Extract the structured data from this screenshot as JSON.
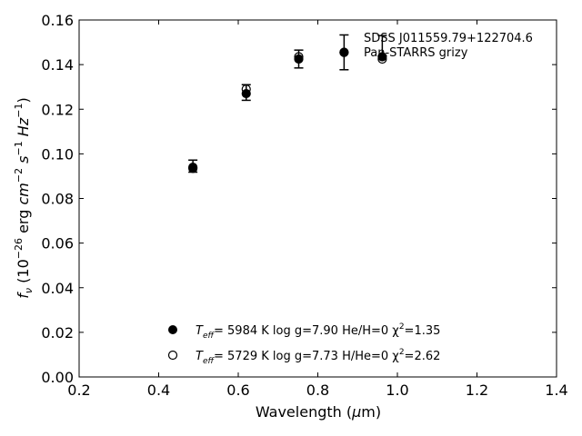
{
  "chart_data": {
    "type": "scatter",
    "annotation_lines": [
      "SDSS J011559.79+122704.6",
      "Pan-STARRS grizy"
    ],
    "xlabel": "Wavelength (μm)",
    "ylabel": "fν (10⁻²⁶ erg cm⁻² s⁻¹ Hz⁻¹)",
    "xlim": [
      0.2,
      1.4
    ],
    "ylim": [
      0.0,
      0.16
    ],
    "xticks": [
      "0.2",
      "0.4",
      "0.6",
      "0.8",
      "1.0",
      "1.2",
      "1.4"
    ],
    "yticks": [
      "0.00",
      "0.02",
      "0.04",
      "0.06",
      "0.08",
      "0.10",
      "0.12",
      "0.14",
      "0.16"
    ],
    "grid": false,
    "legend_position": "lower-center",
    "observed": {
      "x": [
        0.486,
        0.62,
        0.752,
        0.866,
        0.962
      ],
      "y": [
        0.0945,
        0.1275,
        0.1425,
        0.1455,
        0.1485
      ],
      "yerr": [
        0.0027,
        0.0035,
        0.004,
        0.0078,
        0.0045
      ]
    },
    "series": [
      {
        "name": "Teff= 5984 K log g=7.90 He/H=0 χ²=1.35",
        "marker": "filled-circle",
        "x": [
          0.486,
          0.62,
          0.752,
          0.866,
          0.962
        ],
        "y": [
          0.0935,
          0.127,
          0.1425,
          0.1455,
          0.1435
        ]
      },
      {
        "name": "Teff= 5729 K log g=7.73 H/He=0 χ²=2.62",
        "marker": "open-circle",
        "x": [
          0.486,
          0.62,
          0.752,
          0.866,
          0.962
        ],
        "y": [
          0.094,
          0.129,
          0.1435,
          0.1455,
          0.1425
        ]
      }
    ],
    "legend": [
      {
        "marker": "filled-circle",
        "teff_label": "T",
        "teff_sub": "eff",
        "rest": "=  5984 K  log g=7.90  He/H=0  χ",
        "sup": "2",
        "tail": "=1.35"
      },
      {
        "marker": "open-circle",
        "teff_label": "T",
        "teff_sub": "eff",
        "rest": "=  5729 K  log g=7.73  H/He=0  χ",
        "sup": "2",
        "tail": "=2.62"
      }
    ]
  }
}
